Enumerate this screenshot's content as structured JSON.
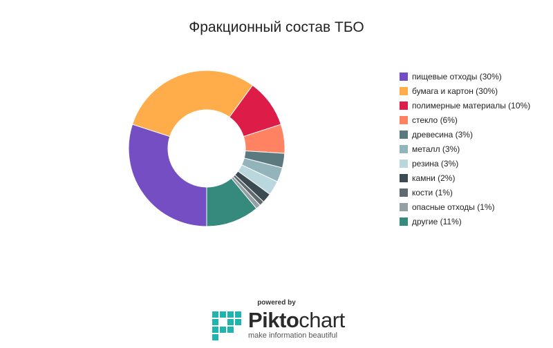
{
  "chart_data": {
    "type": "pie",
    "title": "Фракционный состав ТБО",
    "legend_position": "right",
    "slices": [
      {
        "label": "пищевые отходы (30%)",
        "value": 30,
        "color": "#744ec2"
      },
      {
        "label": "бумага и картон (30%)",
        "value": 30,
        "color": "#ffad4a"
      },
      {
        "label": "полимерные материалы (10%)",
        "value": 10,
        "color": "#dd1c47"
      },
      {
        "label": "стекло (6%)",
        "value": 6,
        "color": "#ff8362"
      },
      {
        "label": "древесина (3%)",
        "value": 3,
        "color": "#5b7a80"
      },
      {
        "label": "металл (3%)",
        "value": 3,
        "color": "#94b4bb"
      },
      {
        "label": "резина (3%)",
        "value": 3,
        "color": "#b9d7dd"
      },
      {
        "label": "камни (2%)",
        "value": 2,
        "color": "#3c4b51"
      },
      {
        "label": "кости (1%)",
        "value": 1,
        "color": "#5d6a6e"
      },
      {
        "label": "опасные отходы (1%)",
        "value": 1,
        "color": "#94a0a3"
      },
      {
        "label": "другие (11%)",
        "value": 11,
        "color": "#36897d"
      }
    ]
  },
  "branding": {
    "powered_by": "powered by",
    "name_part1": "Pikto",
    "name_part2": "chart",
    "tagline": "make information beautiful",
    "logo_icon": "piktochart-logo-icon"
  }
}
